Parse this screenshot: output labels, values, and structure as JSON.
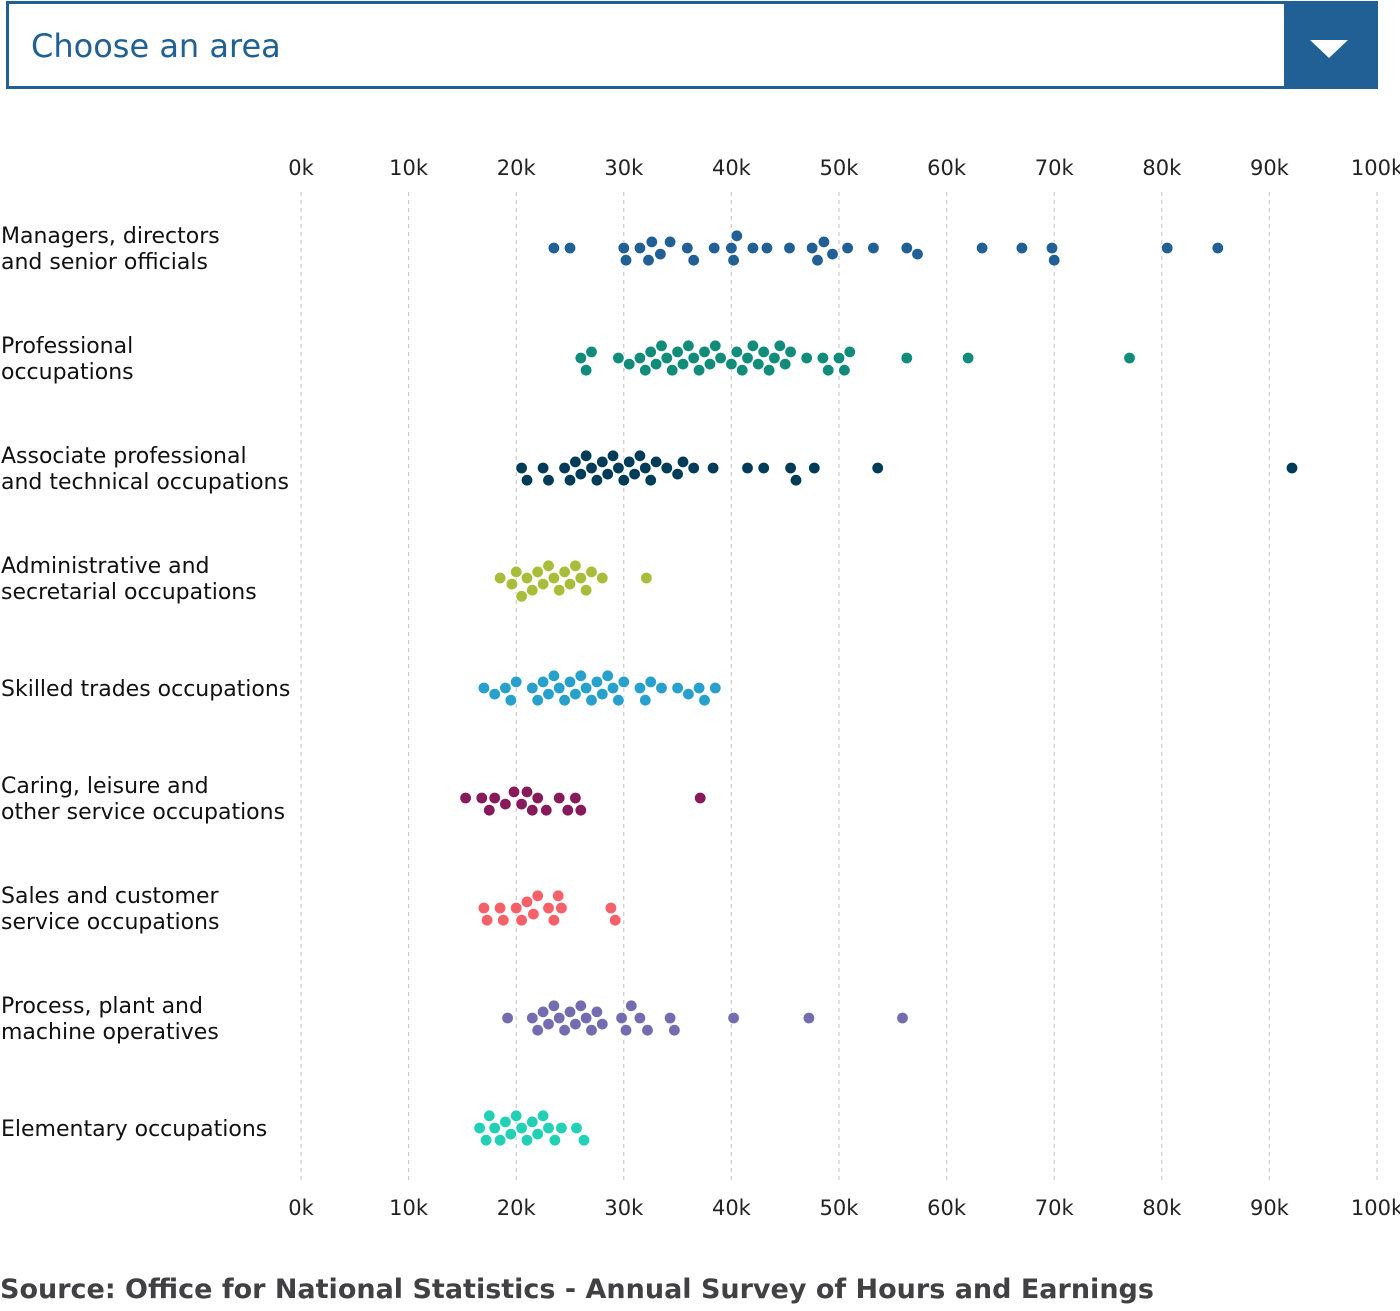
{
  "selector": {
    "placeholder": "Choose an area",
    "icon": "chevron-down-icon"
  },
  "source": "Source: Office for National Statistics - Annual Survey of Hours and Earnings",
  "colors": {
    "primary": "#206095",
    "grid": "#cccccc",
    "axis_text": "#222222"
  },
  "chart_data": {
    "type": "scatter",
    "subtype": "beeswarm",
    "title": "",
    "xlabel": "",
    "ylabel": "",
    "xlim": [
      0,
      100000
    ],
    "x_tick_labels": [
      "0k",
      "10k",
      "20k",
      "30k",
      "40k",
      "50k",
      "60k",
      "70k",
      "80k",
      "90k",
      "100k"
    ],
    "x_ticks": [
      0,
      10000,
      20000,
      30000,
      40000,
      50000,
      60000,
      70000,
      80000,
      90000,
      100000
    ],
    "grid": true,
    "axis_positions": [
      "top",
      "bottom"
    ],
    "series": [
      {
        "label_lines": [
          "Managers, directors",
          "and senior officials"
        ],
        "color": "#206095",
        "values": [
          23500,
          25000,
          30000,
          30200,
          31500,
          32300,
          32600,
          33400,
          34300,
          35900,
          36500,
          38400,
          40000,
          40200,
          40500,
          42000,
          43300,
          45400,
          47500,
          48000,
          48600,
          49400,
          50800,
          53200,
          56300,
          57300,
          63300,
          67000,
          69800,
          70000,
          80500,
          85200
        ]
      },
      {
        "label_lines": [
          "Professional",
          "occupations"
        ],
        "color": "#118c7b",
        "values": [
          26000,
          26500,
          27000,
          29500,
          30500,
          31500,
          32000,
          32500,
          33000,
          33500,
          34000,
          34500,
          35000,
          35500,
          36000,
          36500,
          37000,
          37500,
          38000,
          38500,
          39000,
          40000,
          40500,
          41000,
          41500,
          42000,
          42500,
          43000,
          43500,
          44000,
          44500,
          45000,
          45500,
          47000,
          48500,
          49000,
          50000,
          50500,
          51000,
          56300,
          62000,
          77000
        ]
      },
      {
        "label_lines": [
          "Associate professional",
          "and technical occupations"
        ],
        "color": "#003c57",
        "values": [
          20500,
          21000,
          22500,
          23000,
          24500,
          25000,
          25500,
          26000,
          26500,
          27000,
          27500,
          28000,
          28500,
          29000,
          29500,
          30000,
          30500,
          31000,
          31500,
          32000,
          32500,
          33000,
          34000,
          35000,
          35500,
          36500,
          38300,
          41500,
          43000,
          45500,
          46000,
          47700,
          53600,
          92100
        ]
      },
      {
        "label_lines": [
          "Administrative and",
          "secretarial occupations"
        ],
        "color": "#a8bd3a",
        "values": [
          18500,
          19600,
          20000,
          20500,
          21000,
          21500,
          22000,
          22500,
          23000,
          23500,
          24000,
          24500,
          25000,
          25500,
          26000,
          26500,
          27000,
          28000,
          32100
        ]
      },
      {
        "label_lines": [
          "Skilled trades occupations"
        ],
        "color": "#27a0cc",
        "values": [
          17000,
          18000,
          19000,
          19500,
          20000,
          21500,
          22000,
          22500,
          23000,
          23500,
          24000,
          24500,
          25000,
          25500,
          26000,
          26500,
          27000,
          27500,
          28000,
          28500,
          29000,
          29500,
          30000,
          31500,
          32000,
          32500,
          33500,
          35000,
          36000,
          37000,
          37500,
          38500
        ]
      },
      {
        "label_lines": [
          "Caring, leisure and",
          "other service occupations"
        ],
        "color": "#871a5b",
        "values": [
          15300,
          16800,
          17500,
          18000,
          19000,
          19800,
          20500,
          21000,
          21500,
          22000,
          22800,
          24000,
          24800,
          25500,
          26000,
          37100
        ]
      },
      {
        "label_lines": [
          "Sales and customer",
          "service occupations"
        ],
        "color": "#f66068",
        "values": [
          17000,
          17300,
          18500,
          18800,
          20000,
          20500,
          21000,
          21600,
          22000,
          23000,
          23500,
          23900,
          24200,
          28800,
          29200
        ]
      },
      {
        "label_lines": [
          "Process, plant and",
          "machine operatives"
        ],
        "color": "#746cb1",
        "values": [
          19200,
          21500,
          22000,
          22500,
          23000,
          23500,
          24000,
          24500,
          25000,
          25500,
          26000,
          26500,
          27000,
          27500,
          28000,
          29800,
          30200,
          30700,
          31500,
          32200,
          34300,
          34700,
          40200,
          47200,
          55900
        ]
      },
      {
        "label_lines": [
          "Elementary occupations"
        ],
        "color": "#22d0b6",
        "values": [
          16600,
          17200,
          17500,
          18000,
          18500,
          19000,
          19500,
          20000,
          20500,
          21000,
          21500,
          22000,
          22500,
          23000,
          23600,
          24200,
          25600,
          26300
        ]
      }
    ]
  }
}
